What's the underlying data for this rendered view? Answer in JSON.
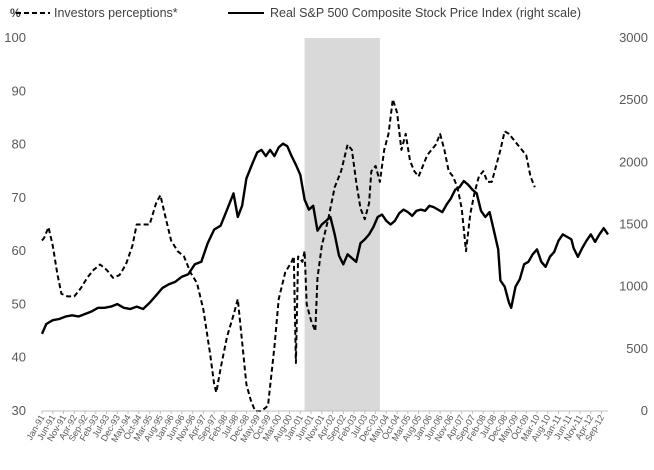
{
  "chart_data": {
    "type": "line",
    "title": "",
    "xlabel": "",
    "left_axis": {
      "unit": "%",
      "ylim": [
        30,
        100
      ],
      "ticks": [
        "30",
        "40",
        "50",
        "60",
        "70",
        "80",
        "90",
        "100"
      ]
    },
    "right_axis": {
      "ylim": [
        0,
        3000
      ],
      "ticks": [
        "0",
        "500",
        "1000",
        "1500",
        "2000",
        "2500",
        "3000"
      ]
    },
    "x_tick_labels": [
      "Jan-91",
      "Jun-91",
      "Nov-91",
      "Apr-92",
      "Sep-92",
      "Feb-93",
      "Jul-93",
      "Dec-93",
      "May-94",
      "Oct-94",
      "Mar-95",
      "Aug-95",
      "Jan-96",
      "Jun-96",
      "Nov-96",
      "Apr-97",
      "Sep-97",
      "Feb-98",
      "Jul-98",
      "Dec-98",
      "May-99",
      "Oct-99",
      "Mar-00",
      "Aug-00",
      "Jan-01",
      "Jun-01",
      "Nov-01",
      "Apr-02",
      "Sep-02",
      "Feb-03",
      "Jul-03",
      "Dec-03",
      "May-04",
      "Oct-04",
      "Mar-05",
      "Aug-05",
      "Jan-06",
      "Jun-06",
      "Nov-06",
      "Apr-07",
      "Sep-07",
      "Feb-08",
      "Jul-08",
      "Dec-08",
      "May-09",
      "Oct-09",
      "Mar-10",
      "Aug-10",
      "Jan-11",
      "Jun-11",
      "Nov-11",
      "Apr-12",
      "Sep-12"
    ],
    "shaded_region": {
      "from": "Mar-01",
      "to": "Feb-04",
      "color": "#d9d9d9"
    },
    "legend_position": "top",
    "series": [
      {
        "name": "Investors perceptions*",
        "axis": "left",
        "style": "dashed",
        "color": "#000000",
        "points": [
          [
            "Jan-91",
            62
          ],
          [
            "Feb-91",
            62.5
          ],
          [
            "Apr-91",
            64.5
          ],
          [
            "Jun-91",
            61
          ],
          [
            "Aug-91",
            56
          ],
          [
            "Oct-91",
            52
          ],
          [
            "Jan-92",
            51.5
          ],
          [
            "Apr-92",
            51.5
          ],
          [
            "Jul-92",
            53
          ],
          [
            "Oct-92",
            55
          ],
          [
            "Jan-93",
            56.5
          ],
          [
            "Apr-93",
            57.5
          ],
          [
            "Jul-93",
            56.5
          ],
          [
            "Oct-93",
            55
          ],
          [
            "Jan-94",
            55.5
          ],
          [
            "Apr-94",
            57.5
          ],
          [
            "Jul-94",
            61
          ],
          [
            "Sep-94",
            65
          ],
          [
            "Dec-94",
            65
          ],
          [
            "Mar-95",
            65
          ],
          [
            "Jun-95",
            69
          ],
          [
            "Aug-95",
            70.5
          ],
          [
            "Oct-95",
            67
          ],
          [
            "Jan-96",
            62
          ],
          [
            "Apr-96",
            60
          ],
          [
            "Jul-96",
            59
          ],
          [
            "Oct-96",
            56
          ],
          [
            "Jan-97",
            54
          ],
          [
            "Apr-97",
            49
          ],
          [
            "Jul-97",
            41
          ],
          [
            "Sep-97",
            35
          ],
          [
            "Oct-97",
            33.5
          ],
          [
            "Dec-97",
            38
          ],
          [
            "Mar-98",
            44
          ],
          [
            "Jun-98",
            48
          ],
          [
            "Aug-98",
            51
          ],
          [
            "Oct-98",
            43
          ],
          [
            "Dec-98",
            35
          ],
          [
            "Feb-99",
            32
          ],
          [
            "Apr-99",
            30
          ],
          [
            "Jul-99",
            30
          ],
          [
            "Oct-99",
            31
          ],
          [
            "Jan-00",
            42
          ],
          [
            "Mar-00",
            51
          ],
          [
            "Jun-00",
            56
          ],
          [
            "Sep-00",
            58
          ],
          [
            "Oct-00",
            59
          ],
          [
            "Nov-00",
            39
          ],
          [
            "Dec-00",
            59
          ],
          [
            "Feb-01",
            58
          ],
          [
            "Mar-01",
            60
          ],
          [
            "Apr-01",
            50
          ],
          [
            "Jun-01",
            47
          ],
          [
            "Aug-01",
            45
          ],
          [
            "Sep-01",
            55
          ],
          [
            "Nov-01",
            61
          ],
          [
            "Feb-02",
            66
          ],
          [
            "May-02",
            72
          ],
          [
            "Aug-02",
            75
          ],
          [
            "Nov-02",
            80
          ],
          [
            "Jan-03",
            79
          ],
          [
            "Mar-03",
            73
          ],
          [
            "May-03",
            68
          ],
          [
            "Jul-03",
            66
          ],
          [
            "Sep-03",
            69
          ],
          [
            "Oct-03",
            75
          ],
          [
            "Dec-03",
            76
          ],
          [
            "Feb-04",
            73
          ],
          [
            "Apr-04",
            79
          ],
          [
            "Jun-04",
            82
          ],
          [
            "Aug-04",
            88.5
          ],
          [
            "Oct-04",
            86
          ],
          [
            "Dec-04",
            79
          ],
          [
            "Feb-05",
            82
          ],
          [
            "Apr-05",
            77
          ],
          [
            "Jun-05",
            75
          ],
          [
            "Aug-05",
            74
          ],
          [
            "Oct-05",
            76
          ],
          [
            "Dec-05",
            78
          ],
          [
            "Feb-06",
            79
          ],
          [
            "Apr-06",
            80
          ],
          [
            "Jun-06",
            82
          ],
          [
            "Aug-06",
            79
          ],
          [
            "Oct-06",
            75
          ],
          [
            "Dec-06",
            74
          ],
          [
            "Feb-07",
            72
          ],
          [
            "Apr-07",
            68
          ],
          [
            "Jun-07",
            60
          ],
          [
            "Aug-07",
            67
          ],
          [
            "Oct-07",
            71
          ],
          [
            "Dec-07",
            74
          ],
          [
            "Feb-08",
            75
          ],
          [
            "Apr-08",
            73
          ],
          [
            "Jun-08",
            73
          ],
          [
            "Aug-08",
            76
          ],
          [
            "Oct-08",
            79
          ],
          [
            "Dec-08",
            82.5
          ],
          [
            "Feb-09",
            82
          ],
          [
            "Apr-09",
            81
          ],
          [
            "Jun-09",
            80
          ],
          [
            "Aug-09",
            79
          ],
          [
            "Oct-09",
            78
          ],
          [
            "Dec-09",
            74
          ],
          [
            "Feb-10",
            72
          ]
        ]
      },
      {
        "name": "Real S&P 500 Composite Stock Price Index (right scale)",
        "axis": "right",
        "style": "solid",
        "color": "#000000",
        "points": [
          [
            "Jan-91",
            620
          ],
          [
            "Mar-91",
            700
          ],
          [
            "Jun-91",
            730
          ],
          [
            "Sep-91",
            740
          ],
          [
            "Dec-91",
            760
          ],
          [
            "Mar-92",
            770
          ],
          [
            "Jun-92",
            760
          ],
          [
            "Sep-92",
            780
          ],
          [
            "Dec-92",
            800
          ],
          [
            "Mar-93",
            830
          ],
          [
            "Jun-93",
            830
          ],
          [
            "Sep-93",
            840
          ],
          [
            "Dec-93",
            860
          ],
          [
            "Mar-94",
            830
          ],
          [
            "Jun-94",
            820
          ],
          [
            "Sep-94",
            840
          ],
          [
            "Dec-94",
            820
          ],
          [
            "Mar-95",
            870
          ],
          [
            "Jun-95",
            930
          ],
          [
            "Sep-95",
            990
          ],
          [
            "Dec-95",
            1020
          ],
          [
            "Mar-96",
            1040
          ],
          [
            "Jun-96",
            1080
          ],
          [
            "Sep-96",
            1100
          ],
          [
            "Dec-96",
            1180
          ],
          [
            "Mar-97",
            1200
          ],
          [
            "Jun-97",
            1350
          ],
          [
            "Sep-97",
            1460
          ],
          [
            "Dec-97",
            1490
          ],
          [
            "Mar-98",
            1620
          ],
          [
            "Jun-98",
            1750
          ],
          [
            "Aug-98",
            1560
          ],
          [
            "Oct-98",
            1650
          ],
          [
            "Dec-98",
            1870
          ],
          [
            "Mar-99",
            2000
          ],
          [
            "May-99",
            2080
          ],
          [
            "Jul-99",
            2100
          ],
          [
            "Sep-99",
            2050
          ],
          [
            "Nov-99",
            2100
          ],
          [
            "Jan-00",
            2050
          ],
          [
            "Mar-00",
            2120
          ],
          [
            "May-00",
            2150
          ],
          [
            "Jul-00",
            2130
          ],
          [
            "Sep-00",
            2050
          ],
          [
            "Nov-00",
            1980
          ],
          [
            "Jan-01",
            1900
          ],
          [
            "Mar-01",
            1700
          ],
          [
            "May-01",
            1620
          ],
          [
            "Jul-01",
            1650
          ],
          [
            "Sep-01",
            1450
          ],
          [
            "Nov-01",
            1500
          ],
          [
            "Jan-02",
            1530
          ],
          [
            "Mar-02",
            1560
          ],
          [
            "May-02",
            1420
          ],
          [
            "Jul-02",
            1250
          ],
          [
            "Sep-02",
            1180
          ],
          [
            "Nov-02",
            1260
          ],
          [
            "Jan-03",
            1230
          ],
          [
            "Mar-03",
            1200
          ],
          [
            "May-03",
            1350
          ],
          [
            "Jul-03",
            1380
          ],
          [
            "Sep-03",
            1420
          ],
          [
            "Nov-03",
            1480
          ],
          [
            "Jan-04",
            1560
          ],
          [
            "Mar-04",
            1580
          ],
          [
            "May-04",
            1530
          ],
          [
            "Jul-04",
            1500
          ],
          [
            "Sep-04",
            1530
          ],
          [
            "Nov-04",
            1590
          ],
          [
            "Jan-05",
            1620
          ],
          [
            "Mar-05",
            1600
          ],
          [
            "May-05",
            1570
          ],
          [
            "Jul-05",
            1610
          ],
          [
            "Sep-05",
            1620
          ],
          [
            "Nov-05",
            1610
          ],
          [
            "Jan-06",
            1650
          ],
          [
            "Mar-06",
            1640
          ],
          [
            "May-06",
            1620
          ],
          [
            "Jul-06",
            1600
          ],
          [
            "Sep-06",
            1660
          ],
          [
            "Nov-06",
            1710
          ],
          [
            "Jan-07",
            1780
          ],
          [
            "Mar-07",
            1800
          ],
          [
            "May-07",
            1850
          ],
          [
            "Jul-07",
            1820
          ],
          [
            "Sep-07",
            1780
          ],
          [
            "Nov-07",
            1750
          ],
          [
            "Jan-08",
            1610
          ],
          [
            "Mar-08",
            1560
          ],
          [
            "May-08",
            1600
          ],
          [
            "Jul-08",
            1450
          ],
          [
            "Sep-08",
            1300
          ],
          [
            "Oct-08",
            1050
          ],
          [
            "Dec-08",
            1000
          ],
          [
            "Feb-09",
            870
          ],
          [
            "Mar-09",
            830
          ],
          [
            "May-09",
            1000
          ],
          [
            "Jul-09",
            1060
          ],
          [
            "Sep-09",
            1180
          ],
          [
            "Nov-09",
            1200
          ],
          [
            "Jan-10",
            1260
          ],
          [
            "Mar-10",
            1300
          ],
          [
            "May-10",
            1200
          ],
          [
            "Jul-10",
            1160
          ],
          [
            "Sep-10",
            1240
          ],
          [
            "Nov-10",
            1280
          ],
          [
            "Jan-11",
            1370
          ],
          [
            "Mar-11",
            1420
          ],
          [
            "May-11",
            1400
          ],
          [
            "Jul-11",
            1380
          ],
          [
            "Aug-11",
            1310
          ],
          [
            "Oct-11",
            1240
          ],
          [
            "Dec-11",
            1310
          ],
          [
            "Feb-12",
            1370
          ],
          [
            "Apr-12",
            1420
          ],
          [
            "Jun-12",
            1360
          ],
          [
            "Aug-12",
            1420
          ],
          [
            "Oct-12",
            1470
          ],
          [
            "Dec-12",
            1420
          ]
        ]
      }
    ]
  }
}
